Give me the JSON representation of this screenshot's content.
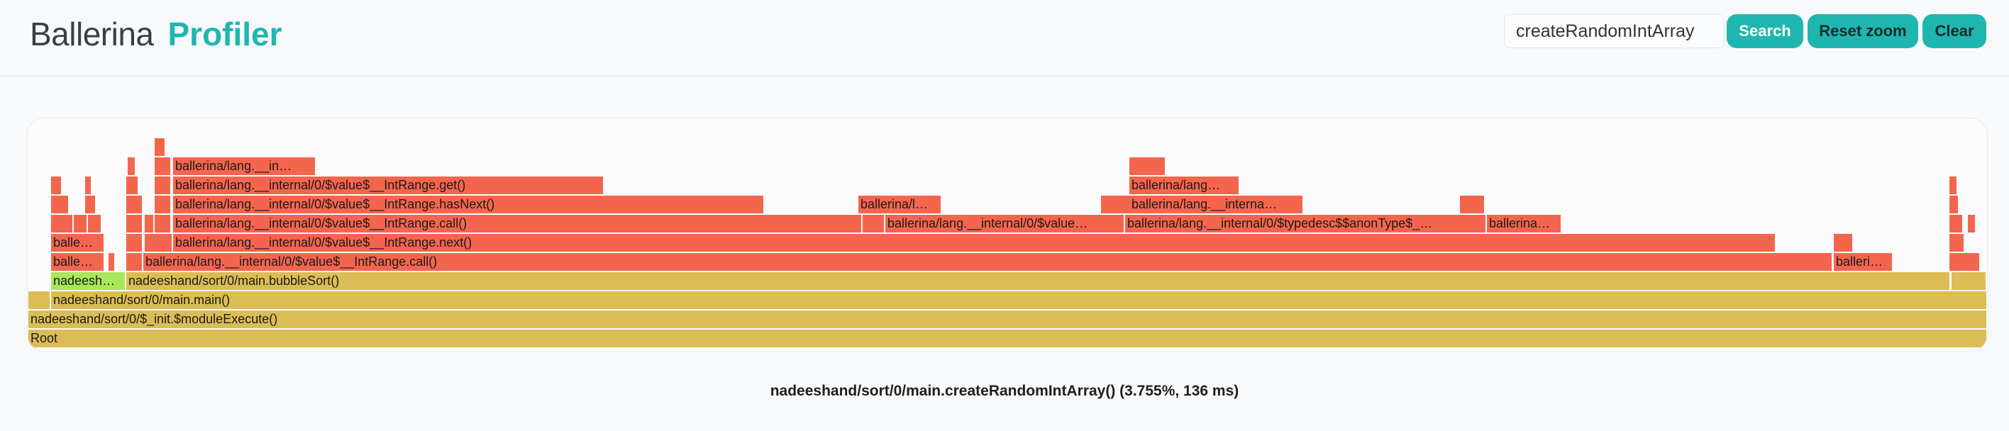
{
  "app": {
    "brand_name": "Ballerina",
    "product_name": "Profiler"
  },
  "search": {
    "value": "createRandomIntArray"
  },
  "buttons": {
    "search": "Search",
    "reset_zoom": "Reset zoom",
    "clear": "Clear"
  },
  "colors": {
    "accent": "#20b6b0",
    "hot_frame": "#f4654e",
    "warm_frame": "#dcbc55",
    "highlight_frame": "#a9e65a"
  },
  "frames": {
    "root": "Root",
    "module_execute": "nadeeshand/sort/0/$_init.$moduleExecute()",
    "main": "nadeeshand/sort/0/main.main()",
    "create_random_short": "nadeesh…",
    "bubble_sort": "nadeeshand/sort/0/main.bubbleSort()",
    "balle_1": "balle…",
    "balle_2": "balle…",
    "intrange_call_1": "ballerina/lang.__internal/0/$value$__IntRange.call()",
    "balleri_right": "balleri…",
    "intrange_next": "ballerina/lang.__internal/0/$value$__IntRange.next()",
    "intrange_call_2": "ballerina/lang.__internal/0/$value$__IntRange.call()",
    "value_short": "ballerina/lang.__internal/0/$value…",
    "typedesc_short": "ballerina/lang.__internal/0/$typedesc$$anonType$_…",
    "ballerina_short": "ballerina…",
    "intrange_hasnext": "ballerina/lang.__internal/0/$value$__IntRange.hasNext()",
    "ballerina_l": "ballerina/l…",
    "interna_short": "ballerina/lang.__interna…",
    "intrange_get": "ballerina/lang.__internal/0/$value$__IntRange.get()",
    "lang_short": "ballerina/lang…",
    "in_short": "ballerina/lang.__in…"
  },
  "details": {
    "text": "nadeeshand/sort/0/main.createRandomIntArray() (3.755%, 136 ms)"
  }
}
